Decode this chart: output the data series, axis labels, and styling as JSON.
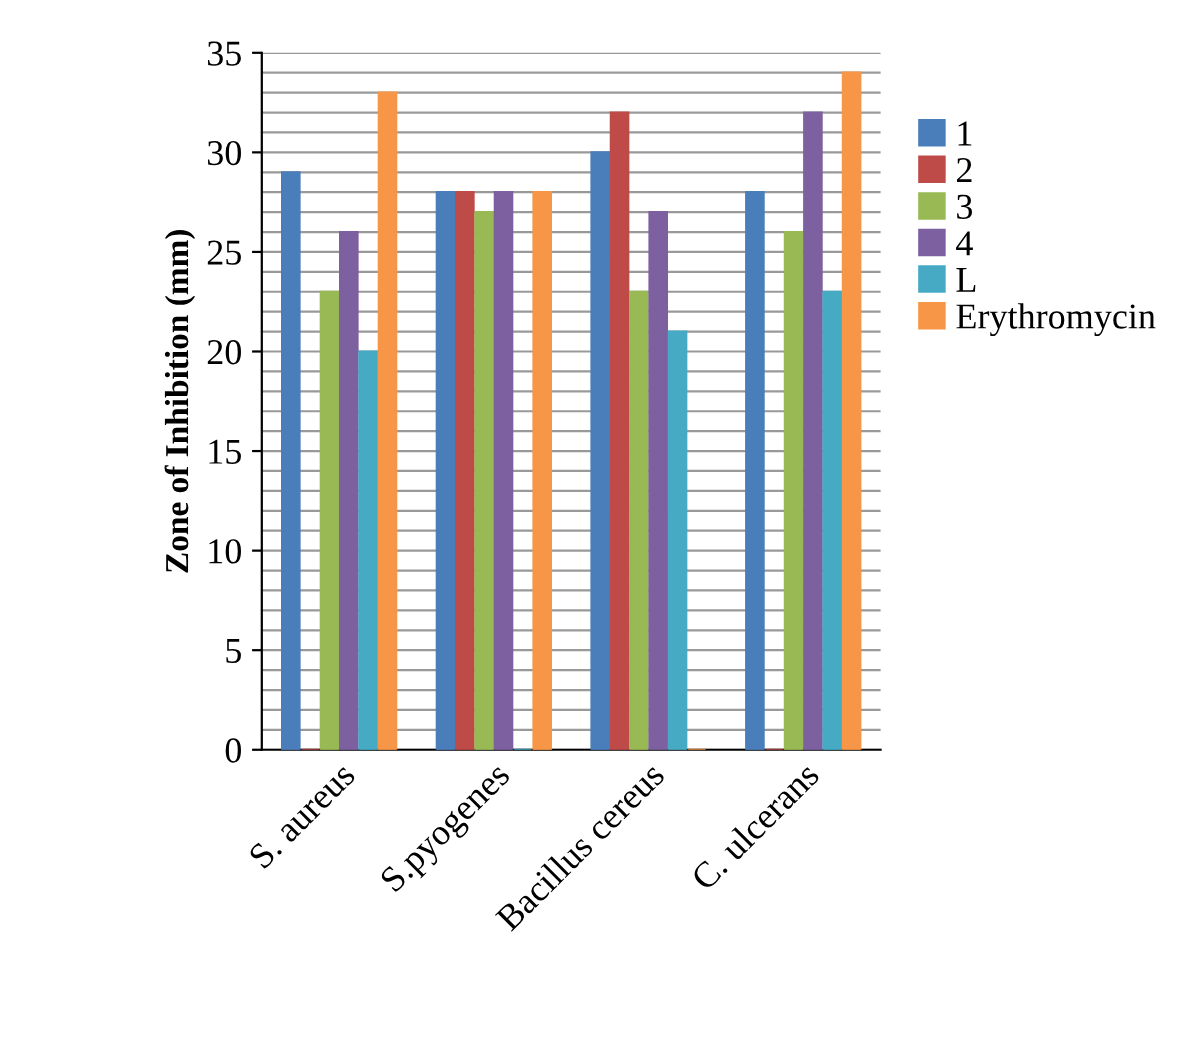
{
  "chart_data": {
    "type": "bar",
    "ylabel": "Zone of Inhibition (mm)",
    "categories": [
      "S. aureus",
      "S.pyogenes",
      "Bacillus cereus",
      "C. ulcerans"
    ],
    "series": [
      {
        "name": "1",
        "color": "#4a7ebb",
        "values": [
          29,
          28,
          30,
          28
        ]
      },
      {
        "name": "2",
        "color": "#be4b48",
        "values": [
          0,
          28,
          32,
          0
        ]
      },
      {
        "name": "3",
        "color": "#98b954",
        "values": [
          23,
          27,
          23,
          26
        ]
      },
      {
        "name": "4",
        "color": "#7d60a0",
        "values": [
          26,
          28,
          27,
          32
        ]
      },
      {
        "name": "L",
        "color": "#46aac5",
        "values": [
          20,
          0,
          21,
          23
        ]
      },
      {
        "name": "Erythromycin",
        "color": "#f79646",
        "values": [
          33,
          28,
          0,
          34
        ]
      }
    ],
    "ylim": [
      0,
      35
    ],
    "yticks": [
      0,
      {
        "value": 1,
        "label": null
      },
      {
        "value": 2,
        "label": null
      },
      {
        "value": 3,
        "label": null
      },
      {
        "value": 4,
        "label": null
      },
      5,
      {
        "value": 6,
        "label": null
      },
      {
        "value": 7,
        "label": null
      },
      {
        "value": 8,
        "label": null
      },
      {
        "value": 9,
        "label": null
      },
      10,
      {
        "value": 11,
        "label": null
      },
      {
        "value": 12,
        "label": null
      },
      {
        "value": 13,
        "label": null
      },
      {
        "value": 14,
        "label": null
      },
      15,
      {
        "value": 16,
        "label": null
      },
      {
        "value": 17,
        "label": null
      },
      {
        "value": 18,
        "label": null
      },
      {
        "value": 19,
        "label": null
      },
      20,
      {
        "value": 21,
        "label": null
      },
      {
        "value": 22,
        "label": null
      },
      {
        "value": 23,
        "label": null
      },
      {
        "value": 24,
        "label": null
      },
      25,
      {
        "value": 26,
        "label": null
      },
      {
        "value": 27,
        "label": null
      },
      {
        "value": 28,
        "label": null
      },
      {
        "value": 29,
        "label": null
      },
      30,
      {
        "value": 31,
        "label": null
      },
      {
        "value": 32,
        "label": null
      },
      {
        "value": 33,
        "label": null
      },
      {
        "value": 34,
        "label": null
      },
      35
    ],
    "grid": "y",
    "legend": "right"
  }
}
